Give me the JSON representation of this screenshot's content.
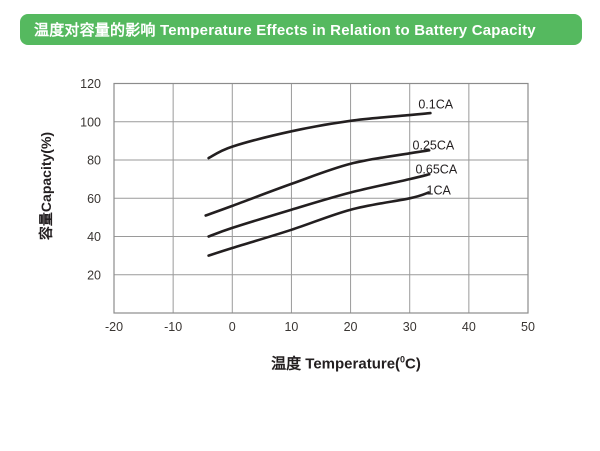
{
  "header": {
    "title": "温度对容量的影响 Temperature Effects in Relation to Battery Capacity",
    "bg_color": "#55b95f",
    "text_color": "#ffffff"
  },
  "chart_data": {
    "type": "line",
    "title": "Temperature Effects in Relation to Battery Capacity",
    "xlabel_prefix": "温度 Temperature(",
    "xlabel_sup": "0",
    "xlabel_suffix": "C)",
    "ylabel": "容量Capacity(%)",
    "xlim": [
      -20,
      50
    ],
    "ylim": [
      0,
      120
    ],
    "x_ticks": [
      -20,
      -10,
      0,
      10,
      20,
      30,
      40,
      50
    ],
    "y_ticks": [
      20,
      40,
      60,
      80,
      100,
      120
    ],
    "grid": true,
    "legend_position": "inline-labels-right",
    "line_color": "#231f20",
    "grid_color": "#9a9a9a",
    "frame_color": "#8c8c8c",
    "tick_color": "#3a3633",
    "series": [
      {
        "name": "0.1CA",
        "points": [
          [
            -4,
            81
          ],
          [
            0,
            87
          ],
          [
            10,
            95
          ],
          [
            20,
            100.5
          ],
          [
            30,
            103.5
          ],
          [
            33.5,
            104.5
          ]
        ],
        "label_pos": [
          34.4,
          109
        ]
      },
      {
        "name": "0.25CA",
        "points": [
          [
            -4.5,
            51
          ],
          [
            0,
            56
          ],
          [
            10,
            67.5
          ],
          [
            20,
            78
          ],
          [
            30,
            83.5
          ],
          [
            33.3,
            85
          ]
        ],
        "label_pos": [
          34.0,
          87.5
        ]
      },
      {
        "name": "0.65CA",
        "points": [
          [
            -4,
            40
          ],
          [
            0,
            44.5
          ],
          [
            10,
            54
          ],
          [
            20,
            63
          ],
          [
            30,
            70
          ],
          [
            33.3,
            72.5
          ]
        ],
        "label_pos": [
          34.5,
          75
        ]
      },
      {
        "name": "1CA",
        "points": [
          [
            -4,
            30
          ],
          [
            0,
            34
          ],
          [
            10,
            43.5
          ],
          [
            20,
            54
          ],
          [
            30,
            60
          ],
          [
            33.2,
            63
          ]
        ],
        "label_pos": [
          34.9,
          64
        ]
      }
    ]
  }
}
